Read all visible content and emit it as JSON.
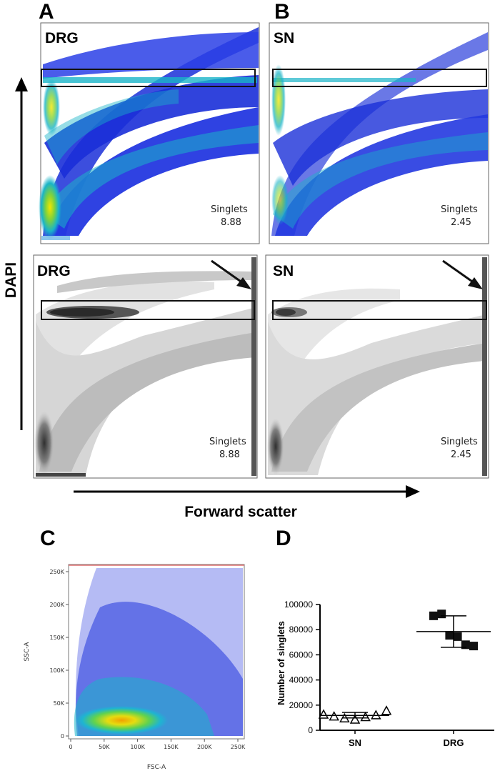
{
  "panels": {
    "a_letter": "A",
    "b_letter": "B",
    "c_letter": "C",
    "d_letter": "D"
  },
  "flow_plots": [
    {
      "label": "DRG",
      "gate_name": "Singlets",
      "gate_value": "8.88",
      "style": "pseudocolor"
    },
    {
      "label": "SN",
      "gate_name": "Singlets",
      "gate_value": "2.45",
      "style": "pseudocolor"
    },
    {
      "label": "DRG",
      "gate_name": "Singlets",
      "gate_value": "8.88",
      "style": "density-gray"
    },
    {
      "label": "SN",
      "gate_name": "Singlets",
      "gate_value": "2.45",
      "style": "density-gray"
    }
  ],
  "axes_ab": {
    "y_label": "DAPI",
    "x_label": "Forward scatter"
  },
  "panel_c": {
    "x_label": "FSC-A",
    "y_label": "SSC-A",
    "x_ticks": [
      "0",
      "50K",
      "100K",
      "150K",
      "200K",
      "250K"
    ],
    "y_ticks": [
      "0",
      "50K",
      "100K",
      "150K",
      "200K",
      "250K"
    ]
  },
  "chart_data": {
    "type": "scatter",
    "xlabel": "",
    "ylabel": "Number of singlets",
    "categories": [
      "SN",
      "DRG"
    ],
    "ylim": [
      0,
      100000
    ],
    "y_ticks": [
      "0",
      "20000",
      "40000",
      "60000",
      "80000",
      "100000"
    ],
    "series": [
      {
        "category": "SN",
        "marker": "open-triangle",
        "values": [
          12500,
          11000,
          9500,
          8500,
          10500,
          12000,
          15500
        ],
        "mean": 11800,
        "sd_low": 9800,
        "sd_high": 14200
      },
      {
        "category": "DRG",
        "marker": "filled-square",
        "values": [
          91000,
          92500,
          75500,
          74500,
          68000,
          67000
        ],
        "mean": 78500,
        "sd_low": 66000,
        "sd_high": 91000
      }
    ]
  }
}
